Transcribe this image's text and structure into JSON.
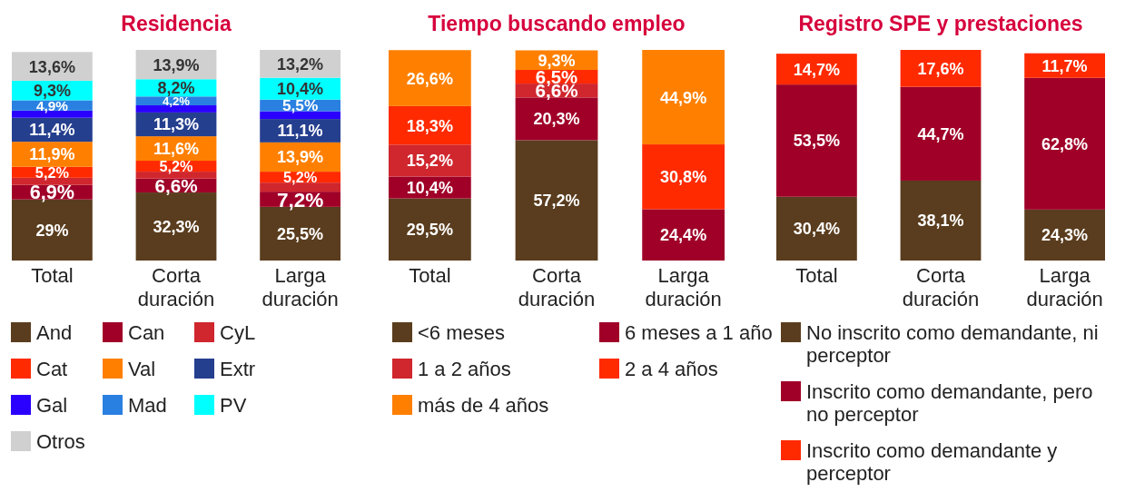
{
  "chart_data": [
    {
      "type": "bar",
      "stacked": true,
      "title": "Residencia",
      "legend": "bottom",
      "categories": [
        "Total",
        "Corta duración",
        "Larga duración"
      ],
      "series": [
        {
          "name": "And",
          "color": "#5a3d1e",
          "values": [
            29,
            32.3,
            25.5
          ],
          "value_labels": [
            "29%",
            "32,3%",
            "25,5%"
          ]
        },
        {
          "name": "Can",
          "color": "#a00028",
          "values": [
            6.9,
            6.6,
            7.2
          ],
          "value_labels": [
            "6,9%",
            "6,6%",
            "7,2%"
          ]
        },
        {
          "name": "CyL",
          "color": "#d0262e",
          "values": [
            3.4,
            3.3,
            4.3
          ],
          "value_labels": [
            null,
            null,
            null
          ]
        },
        {
          "name": "Cat",
          "color": "#ff2a00",
          "values": [
            5.2,
            5.2,
            5.2
          ],
          "value_labels": [
            "5,2%",
            "5,2%",
            "5,2%"
          ]
        },
        {
          "name": "Val",
          "color": "#ff8000",
          "values": [
            11.9,
            11.6,
            13.9
          ],
          "value_labels": [
            "11,9%",
            "11,6%",
            "13,9%"
          ]
        },
        {
          "name": "Extr",
          "color": "#253f8f",
          "values": [
            11.4,
            11.3,
            11.1
          ],
          "value_labels": [
            "11,4%",
            "11,3%",
            "11,1%"
          ]
        },
        {
          "name": "Gal",
          "color": "#2a00ff",
          "values": [
            3.4,
            3.4,
            3.7
          ],
          "value_labels": [
            null,
            null,
            null
          ]
        },
        {
          "name": "Mad",
          "color": "#2a80e0",
          "values": [
            4.9,
            4.2,
            5.5
          ],
          "value_labels": [
            "4,9%",
            "4,2%",
            "5,5%"
          ]
        },
        {
          "name": "PV",
          "color": "#00ffff",
          "values": [
            9.3,
            8.2,
            10.4
          ],
          "value_labels": [
            "9,3%",
            "8,2%",
            "10,4%"
          ]
        },
        {
          "name": "Otros",
          "color": "#d0d0d0",
          "values": [
            13.6,
            13.9,
            13.2
          ],
          "value_labels": [
            "13,6%",
            "13,9%",
            "13,2%"
          ]
        }
      ]
    },
    {
      "type": "bar",
      "stacked": true,
      "title": "Tiempo buscando empleo",
      "legend": "bottom",
      "categories": [
        "Total",
        "Corta duración",
        "Larga duración"
      ],
      "series": [
        {
          "name": "<6 meses",
          "color": "#5a3d1e",
          "values": [
            29.5,
            57.2,
            null
          ],
          "value_labels": [
            "29,5%",
            "57,2%",
            null
          ]
        },
        {
          "name": "6 meses a 1 año",
          "color": "#a00028",
          "values": [
            10.4,
            20.3,
            24.4
          ],
          "value_labels": [
            "10,4%",
            "20,3%",
            "24,4%"
          ]
        },
        {
          "name": "1 a 2 años",
          "color": "#d0262e",
          "values": [
            15.2,
            6.6,
            null
          ],
          "value_labels": [
            "15,2%",
            "6,6%",
            null
          ]
        },
        {
          "name": "2 a 4 años",
          "color": "#ff2a00",
          "values": [
            18.3,
            6.5,
            30.8
          ],
          "value_labels": [
            "18,3%",
            "6,5%",
            "30,8%"
          ]
        },
        {
          "name": "más de 4 años",
          "color": "#ff8000",
          "values": [
            26.6,
            9.3,
            44.9
          ],
          "value_labels": [
            "26,6%",
            "9,3%",
            "44,9%"
          ]
        }
      ]
    },
    {
      "type": "bar",
      "stacked": true,
      "title": "Registro SPE y prestaciones",
      "legend": "bottom",
      "categories": [
        "Total",
        "Corta duración",
        "Larga duración"
      ],
      "series": [
        {
          "name": "No inscrito como demandante, ni perceptor",
          "color": "#5a3d1e",
          "values": [
            30.4,
            38.1,
            24.3
          ],
          "value_labels": [
            "30,4%",
            "38,1%",
            "24,3%"
          ]
        },
        {
          "name": "Inscrito como demandante, pero no perceptor",
          "color": "#a00028",
          "values": [
            53.5,
            44.7,
            62.8
          ],
          "value_labels": [
            "53,5%",
            "44,7%",
            "62,8%"
          ]
        },
        {
          "name": "Inscrito como demandante y perceptor",
          "color": "#ff2a00",
          "values": [
            14.7,
            17.6,
            11.7
          ],
          "value_labels": [
            "14,7%",
            "17,6%",
            "11,7%"
          ]
        }
      ]
    }
  ]
}
